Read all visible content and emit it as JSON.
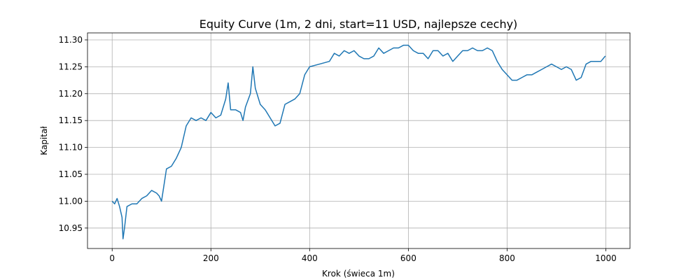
{
  "chart_data": {
    "type": "line",
    "title": "Equity Curve (1m, 2 dni, start=11 USD, najlepsze cechy)",
    "xlabel": "Krok (świeca 1m)",
    "ylabel": "Kapitał",
    "x": [
      0,
      5,
      10,
      15,
      20,
      22,
      25,
      30,
      40,
      50,
      60,
      70,
      80,
      90,
      95,
      100,
      105,
      110,
      120,
      130,
      140,
      150,
      160,
      170,
      180,
      190,
      200,
      210,
      220,
      230,
      235,
      240,
      250,
      260,
      265,
      270,
      280,
      285,
      290,
      300,
      310,
      320,
      330,
      340,
      350,
      360,
      370,
      380,
      390,
      400,
      420,
      440,
      450,
      460,
      470,
      480,
      490,
      500,
      510,
      520,
      530,
      540,
      550,
      560,
      570,
      580,
      590,
      600,
      610,
      620,
      630,
      640,
      650,
      660,
      670,
      680,
      690,
      700,
      710,
      720,
      730,
      740,
      750,
      760,
      770,
      780,
      790,
      800,
      810,
      820,
      830,
      840,
      850,
      860,
      870,
      880,
      890,
      900,
      910,
      920,
      930,
      940,
      950,
      960,
      970,
      980,
      990,
      999
    ],
    "values": [
      11.0,
      10.995,
      11.005,
      10.99,
      10.97,
      10.93,
      10.95,
      10.99,
      10.995,
      10.995,
      11.005,
      11.01,
      11.02,
      11.015,
      11.01,
      11.0,
      11.03,
      11.06,
      11.065,
      11.08,
      11.1,
      11.14,
      11.155,
      11.15,
      11.155,
      11.15,
      11.165,
      11.155,
      11.16,
      11.19,
      11.22,
      11.17,
      11.17,
      11.165,
      11.15,
      11.175,
      11.2,
      11.25,
      11.21,
      11.18,
      11.17,
      11.155,
      11.14,
      11.145,
      11.18,
      11.185,
      11.19,
      11.2,
      11.235,
      11.25,
      11.255,
      11.26,
      11.275,
      11.27,
      11.28,
      11.275,
      11.28,
      11.27,
      11.265,
      11.265,
      11.27,
      11.285,
      11.275,
      11.28,
      11.285,
      11.285,
      11.29,
      11.29,
      11.28,
      11.275,
      11.275,
      11.265,
      11.28,
      11.28,
      11.27,
      11.275,
      11.26,
      11.27,
      11.28,
      11.28,
      11.285,
      11.28,
      11.28,
      11.285,
      11.28,
      11.26,
      11.245,
      11.235,
      11.225,
      11.225,
      11.23,
      11.235,
      11.235,
      11.24,
      11.245,
      11.25,
      11.255,
      11.25,
      11.245,
      11.25,
      11.245,
      11.225,
      11.23,
      11.255,
      11.26,
      11.26,
      11.26,
      11.27
    ],
    "color": "#1f77b4",
    "xlim": [
      -49.95,
      1048.95
    ],
    "xticks": [
      0,
      200,
      400,
      600,
      800,
      1000
    ],
    "ylim": [
      10.912,
      11.313
    ],
    "yticks": [
      10.95,
      {
        "value": 11.0,
        "label": "11.00"
      },
      11.05,
      {
        "value": 11.1,
        "label": "11.10"
      },
      11.15,
      {
        "value": 11.2,
        "label": "11.20"
      },
      11.25,
      {
        "value": 11.3,
        "label": "11.30"
      }
    ],
    "grid": true
  }
}
